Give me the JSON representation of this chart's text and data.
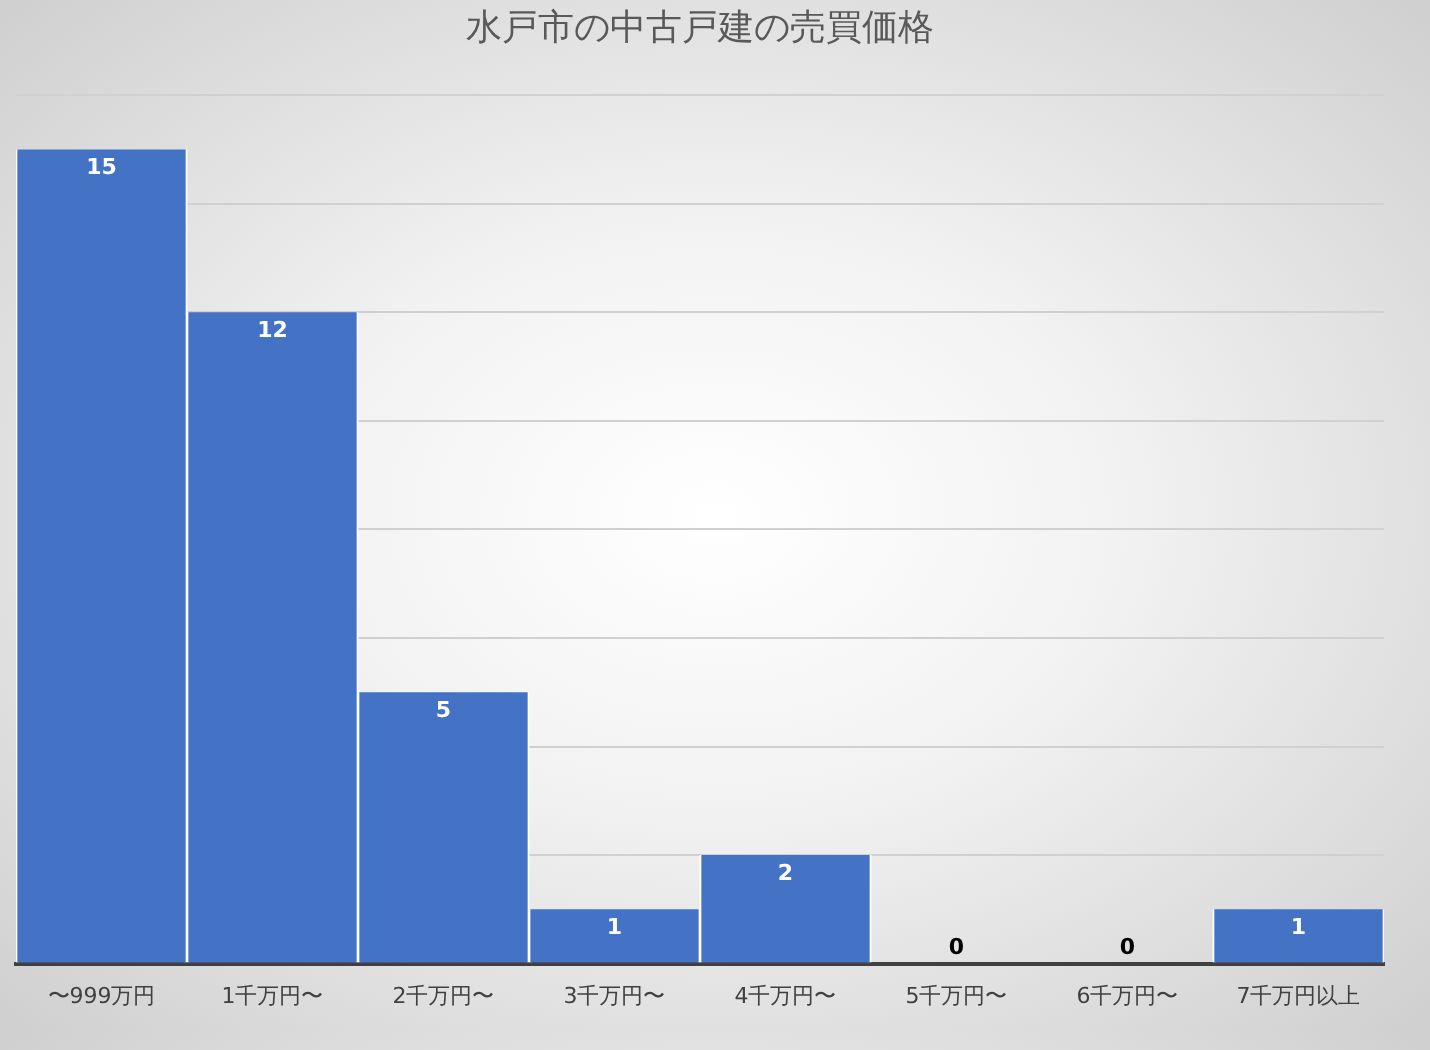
{
  "chart_data": {
    "type": "bar",
    "title": "水戸市の中古戸建の売買価格",
    "categories": [
      "〜999万円",
      "1千万円〜",
      "2千万円〜",
      "3千万円〜",
      "4千万円〜",
      "5千万円〜",
      "6千万円〜",
      "7千万円以上"
    ],
    "values": [
      15,
      12,
      5,
      1,
      2,
      0,
      0,
      1
    ],
    "color": "#4472c4",
    "ylim": [
      0,
      16
    ],
    "yticks": [
      0,
      2,
      4,
      6,
      8,
      10,
      12,
      14,
      16
    ],
    "grid": "y",
    "tick_labels": "x",
    "data_labels": true,
    "legend": false
  }
}
